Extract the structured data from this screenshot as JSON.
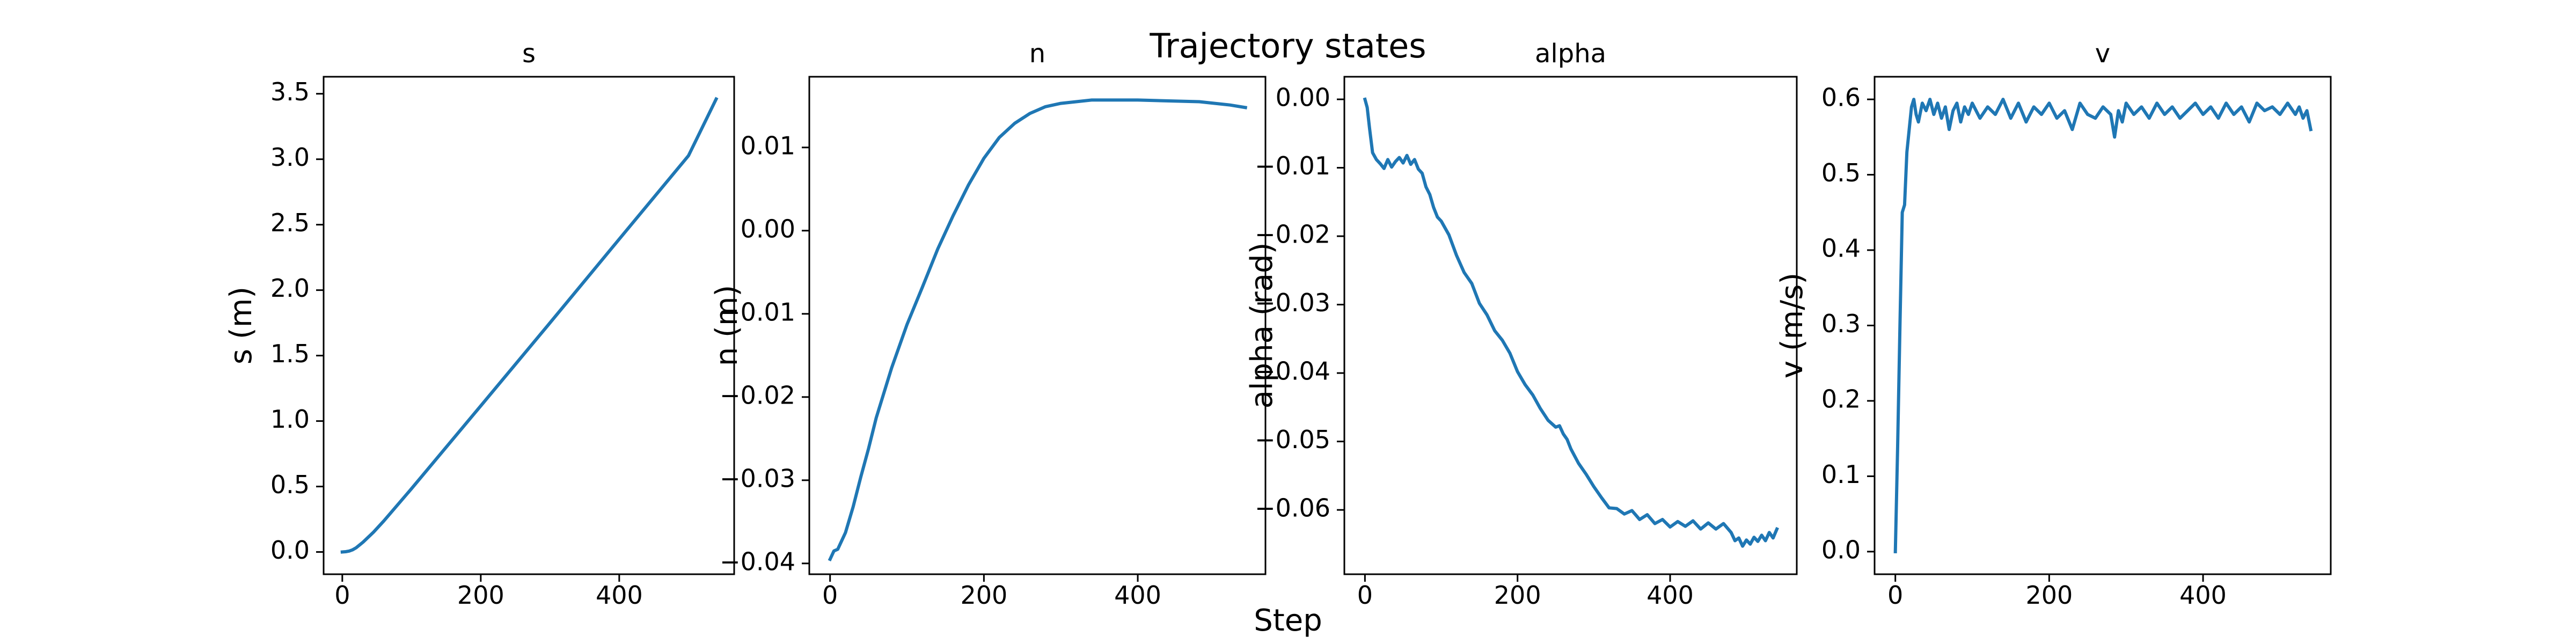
{
  "figure": {
    "suptitle": "Trajectory states",
    "supxlabel": "Step",
    "line_color": "#1f77b4"
  },
  "chart_data": [
    {
      "type": "line",
      "title": "s",
      "xlabel": "",
      "ylabel": "s (m)",
      "xlim": [
        -27,
        566
      ],
      "ylim": [
        -0.17,
        3.63
      ],
      "xticks": [
        0,
        200,
        400
      ],
      "xtick_labels": [
        "0",
        "200",
        "400"
      ],
      "yticks": [
        0,
        0.5,
        1.0,
        1.5,
        2.0,
        2.5,
        3.0,
        3.5
      ],
      "ytick_labels": [
        "0.0",
        "0.5",
        "1.0",
        "1.5",
        "2.0",
        "2.5",
        "3.0",
        "3.5"
      ],
      "grid": false,
      "series": [
        {
          "x": [
            0,
            5,
            10,
            15,
            20,
            30,
            45,
            60,
            100,
            200,
            300,
            400,
            500,
            540
          ],
          "y": [
            0.0,
            0.002,
            0.007,
            0.017,
            0.032,
            0.075,
            0.151,
            0.237,
            0.484,
            1.116,
            1.75,
            2.39,
            3.027,
            3.46
          ]
        }
      ]
    },
    {
      "type": "line",
      "title": "n",
      "xlabel": "",
      "ylabel": "n (m)",
      "xlim": [
        -27,
        566
      ],
      "ylim": [
        -0.0413,
        0.0185
      ],
      "xticks": [
        0,
        200,
        400
      ],
      "xtick_labels": [
        "0",
        "200",
        "400"
      ],
      "yticks": [
        -0.04,
        -0.03,
        -0.02,
        -0.01,
        0.0,
        0.01
      ],
      "ytick_labels": [
        "−0.04",
        "−0.03",
        "−0.02",
        "−0.01",
        "0.00",
        "0.01"
      ],
      "grid": false,
      "series": [
        {
          "x": [
            0,
            5,
            10,
            20,
            30,
            40,
            50,
            60,
            80,
            100,
            120,
            140,
            160,
            180,
            200,
            220,
            240,
            260,
            280,
            300,
            320,
            340,
            360,
            400,
            440,
            480,
            520,
            540
          ],
          "y": [
            -0.0395,
            -0.0385,
            -0.0383,
            -0.0363,
            -0.0332,
            -0.0296,
            -0.0262,
            -0.0225,
            -0.0165,
            -0.0113,
            -0.0068,
            -0.0022,
            0.0018,
            0.0055,
            0.0087,
            0.0112,
            0.0129,
            0.0141,
            0.0149,
            0.0153,
            0.0155,
            0.0157,
            0.0157,
            0.0157,
            0.0156,
            0.0155,
            0.0151,
            0.0148
          ]
        }
      ]
    },
    {
      "type": "line",
      "title": "alpha",
      "xlabel": "",
      "ylabel": "alpha (rad)",
      "xlim": [
        -27,
        566
      ],
      "ylim": [
        -0.0694,
        0.0033
      ],
      "xticks": [
        0,
        200,
        400
      ],
      "xtick_labels": [
        "0",
        "200",
        "400"
      ],
      "yticks": [
        0.0,
        -0.01,
        -0.02,
        -0.03,
        -0.04,
        -0.05,
        -0.06
      ],
      "ytick_labels": [
        "0.00",
        "−0.01",
        "−0.02",
        "−0.03",
        "−0.04",
        "−0.05",
        "−0.06"
      ],
      "grid": false,
      "series": [
        {
          "x": [
            0,
            3,
            6,
            10,
            15,
            20,
            25,
            30,
            35,
            40,
            45,
            50,
            55,
            60,
            65,
            70,
            75,
            80,
            85,
            90,
            95,
            100,
            110,
            120,
            130,
            140,
            150,
            160,
            170,
            180,
            190,
            200,
            210,
            220,
            230,
            240,
            250,
            255,
            260,
            265,
            270,
            280,
            290,
            300,
            310,
            320,
            330,
            340,
            350,
            360,
            370,
            380,
            390,
            400,
            410,
            420,
            430,
            440,
            450,
            460,
            470,
            480,
            485,
            490,
            495,
            500,
            505,
            510,
            515,
            520,
            525,
            530,
            535,
            540
          ],
          "y": [
            0.0,
            -0.0012,
            -0.0042,
            -0.0078,
            -0.0088,
            -0.0094,
            -0.0101,
            -0.0088,
            -0.0099,
            -0.0091,
            -0.0085,
            -0.0093,
            -0.0082,
            -0.0095,
            -0.0088,
            -0.0102,
            -0.0108,
            -0.0128,
            -0.0139,
            -0.0158,
            -0.0172,
            -0.0178,
            -0.0198,
            -0.0228,
            -0.0253,
            -0.0269,
            -0.0298,
            -0.0315,
            -0.0338,
            -0.0352,
            -0.0371,
            -0.0398,
            -0.0417,
            -0.0432,
            -0.0452,
            -0.0469,
            -0.0479,
            -0.0477,
            -0.0489,
            -0.0497,
            -0.0511,
            -0.0532,
            -0.0548,
            -0.0566,
            -0.0582,
            -0.0597,
            -0.0598,
            -0.0606,
            -0.0601,
            -0.0614,
            -0.0607,
            -0.062,
            -0.0614,
            -0.0625,
            -0.0617,
            -0.0624,
            -0.0616,
            -0.0628,
            -0.0619,
            -0.0628,
            -0.062,
            -0.0633,
            -0.0645,
            -0.0641,
            -0.0653,
            -0.0644,
            -0.065,
            -0.064,
            -0.0646,
            -0.0637,
            -0.0645,
            -0.0633,
            -0.0641,
            -0.0628
          ]
        }
      ]
    },
    {
      "type": "line",
      "title": "v",
      "xlabel": "",
      "ylabel": "v (m/s)",
      "xlim": [
        -27,
        566
      ],
      "ylim": [
        -0.03,
        0.63
      ],
      "xticks": [
        0,
        200,
        400
      ],
      "xtick_labels": [
        "0",
        "200",
        "400"
      ],
      "yticks": [
        0.0,
        0.1,
        0.2,
        0.3,
        0.4,
        0.5,
        0.6
      ],
      "ytick_labels": [
        "0.0",
        "0.1",
        "0.2",
        "0.3",
        "0.4",
        "0.5",
        "0.6"
      ],
      "grid": false,
      "series": [
        {
          "x": [
            0,
            3,
            6,
            9,
            12,
            15,
            18,
            21,
            24,
            27,
            30,
            35,
            40,
            45,
            50,
            55,
            60,
            65,
            70,
            75,
            80,
            85,
            90,
            95,
            100,
            110,
            120,
            130,
            140,
            150,
            160,
            170,
            180,
            190,
            200,
            210,
            220,
            230,
            240,
            250,
            260,
            270,
            280,
            285,
            290,
            295,
            300,
            310,
            320,
            330,
            340,
            350,
            360,
            370,
            380,
            390,
            400,
            410,
            420,
            430,
            440,
            450,
            460,
            470,
            480,
            490,
            500,
            510,
            520,
            525,
            530,
            535,
            540
          ],
          "y": [
            0.0,
            0.14,
            0.3,
            0.45,
            0.46,
            0.53,
            0.56,
            0.59,
            0.6,
            0.58,
            0.57,
            0.595,
            0.585,
            0.6,
            0.58,
            0.595,
            0.575,
            0.59,
            0.56,
            0.585,
            0.595,
            0.57,
            0.59,
            0.58,
            0.595,
            0.575,
            0.59,
            0.58,
            0.6,
            0.575,
            0.595,
            0.57,
            0.59,
            0.58,
            0.595,
            0.575,
            0.585,
            0.56,
            0.595,
            0.58,
            0.575,
            0.59,
            0.58,
            0.55,
            0.585,
            0.57,
            0.595,
            0.58,
            0.59,
            0.575,
            0.595,
            0.58,
            0.59,
            0.575,
            0.585,
            0.595,
            0.58,
            0.59,
            0.575,
            0.595,
            0.58,
            0.59,
            0.57,
            0.595,
            0.585,
            0.59,
            0.58,
            0.595,
            0.58,
            0.59,
            0.575,
            0.585,
            0.56
          ]
        }
      ]
    }
  ]
}
